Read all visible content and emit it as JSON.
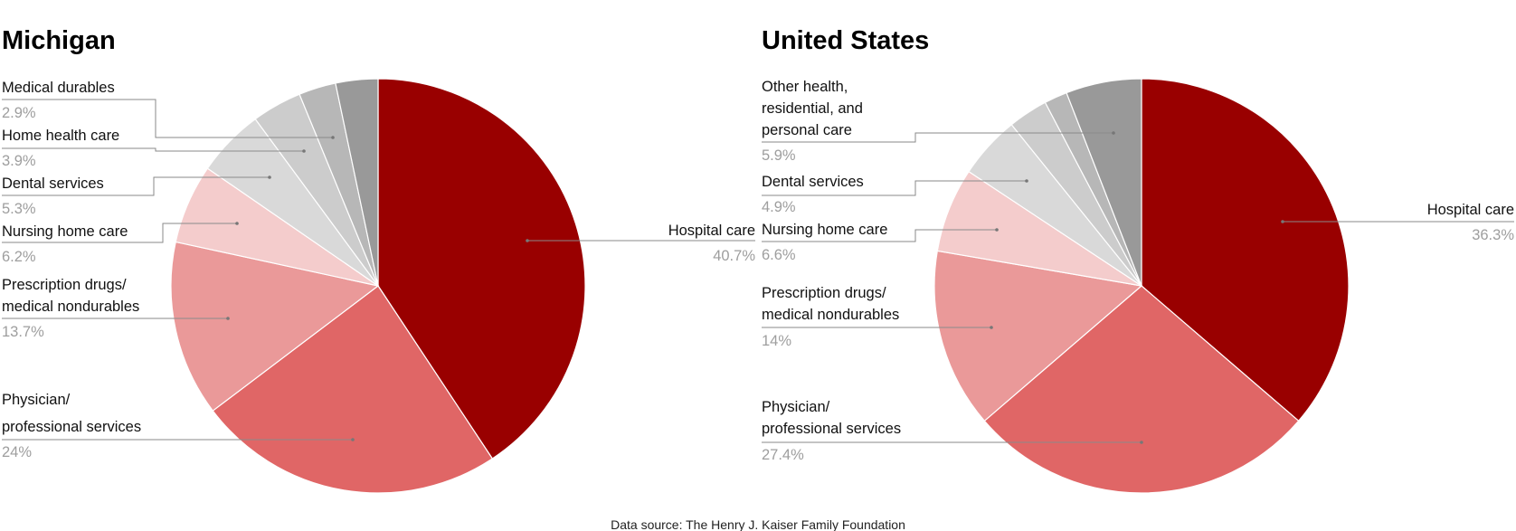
{
  "source": "Data source: The Henry J. Kaiser Family Foundation",
  "chart_data": [
    {
      "type": "pie",
      "title": "Michigan",
      "start_angle_deg": 0,
      "direction": "clockwise",
      "slices": [
        {
          "label": [
            "Hospital care"
          ],
          "pct_text": "40.7%",
          "value": 40.7,
          "color": "#990000"
        },
        {
          "label": [
            "Physician/",
            "professional services"
          ],
          "pct_text": "24%",
          "value": 24.0,
          "color": "#e06666"
        },
        {
          "label": [
            "Prescription drugs/",
            "medical nondurables"
          ],
          "pct_text": "13.7%",
          "value": 13.7,
          "color": "#ea9999"
        },
        {
          "label": [
            "Nursing home care"
          ],
          "pct_text": "6.2%",
          "value": 6.2,
          "color": "#f4cccc"
        },
        {
          "label": [
            "Dental services"
          ],
          "pct_text": "5.3%",
          "value": 5.3,
          "color": "#d9d9d9"
        },
        {
          "label": [
            "Home health care"
          ],
          "pct_text": "3.9%",
          "value": 3.9,
          "color": "#cccccc"
        },
        {
          "label": [
            "Medical durables"
          ],
          "pct_text": "2.9%",
          "value": 2.9,
          "color": "#b7b7b7"
        },
        {
          "label": [],
          "pct_text": "",
          "value": 3.3,
          "color": "#999999"
        }
      ]
    },
    {
      "type": "pie",
      "title": "United States",
      "start_angle_deg": 0,
      "direction": "clockwise",
      "slices": [
        {
          "label": [
            "Hospital care"
          ],
          "pct_text": "36.3%",
          "value": 36.3,
          "color": "#990000"
        },
        {
          "label": [
            "Physician/",
            "professional services"
          ],
          "pct_text": "27.4%",
          "value": 27.4,
          "color": "#e06666"
        },
        {
          "label": [
            "Prescription drugs/",
            "medical nondurables"
          ],
          "pct_text": "14%",
          "value": 14.0,
          "color": "#ea9999"
        },
        {
          "label": [
            "Nursing home care"
          ],
          "pct_text": "6.6%",
          "value": 6.6,
          "color": "#f4cccc"
        },
        {
          "label": [
            "Dental services"
          ],
          "pct_text": "4.9%",
          "value": 4.9,
          "color": "#d9d9d9"
        },
        {
          "label": [],
          "pct_text": "",
          "value": 3.1,
          "color": "#cccccc"
        },
        {
          "label": [],
          "pct_text": "",
          "value": 1.8,
          "color": "#b7b7b7"
        },
        {
          "label": [
            "Other health,",
            "residential, and",
            "personal care"
          ],
          "pct_text": "5.9%",
          "value": 5.9,
          "color": "#999999"
        }
      ]
    }
  ]
}
